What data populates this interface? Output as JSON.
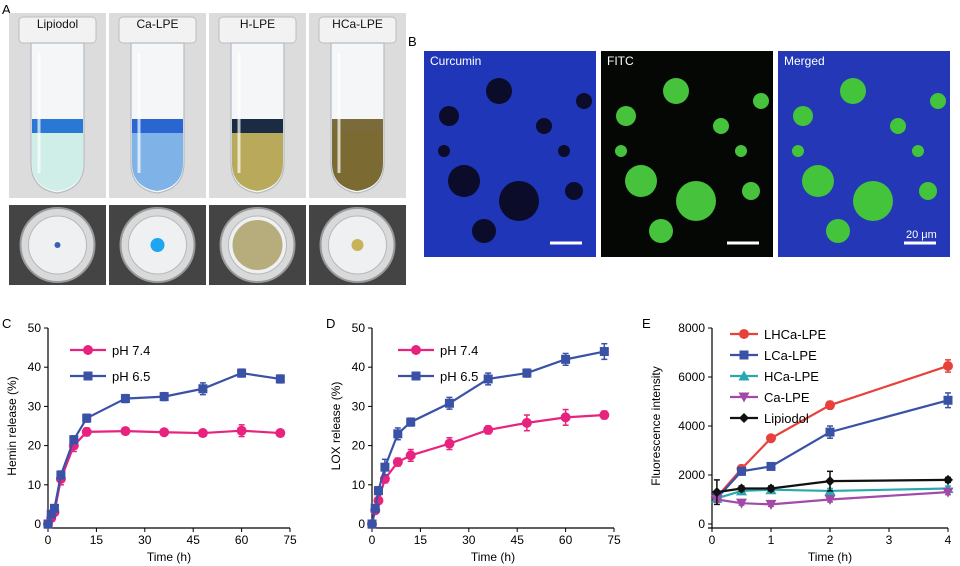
{
  "panelA": {
    "letter": "A",
    "tubes": [
      {
        "label": "Lipiodol",
        "band": "#2a78d6",
        "liquid": "#cfeee7",
        "dish": "#3a5fb0"
      },
      {
        "label": "Ca-LPE",
        "band": "#2a66d2",
        "liquid": "#7fb2e6",
        "dish": "#1ea6ee"
      },
      {
        "label": "H-LPE",
        "band": "#1b2b44",
        "liquid": "#b8aa5a",
        "dish": "#b7ad7c"
      },
      {
        "label": "HCa-LPE",
        "band": "#7b6a3a",
        "liquid": "#7c6a33",
        "dish": "#c7b35a"
      }
    ]
  },
  "panelB": {
    "letter": "B",
    "channels": [
      {
        "label": "Curcumin",
        "bg": "#1f36b8",
        "dot": "#0b0b2a"
      },
      {
        "label": "FITC",
        "bg": "#050705",
        "dot": "#47c23c"
      },
      {
        "label": "Merged",
        "bg": "#2437b6",
        "dot": "#43c43a"
      }
    ],
    "scale_label": "20 μm"
  },
  "chart_data": [
    {
      "letter": "C",
      "type": "line",
      "xlabel": "Time (h)",
      "ylabel": "Hemin release (%)",
      "xlim": [
        0,
        75
      ],
      "ylim": [
        0,
        50
      ],
      "xticks": [
        "0",
        "15",
        "30",
        "45",
        "60",
        "75"
      ],
      "yticks": [
        "0",
        "10",
        "20",
        "30",
        "40",
        "50"
      ],
      "legend": "top-left",
      "series": [
        {
          "name": "pH 7.4",
          "color": "#e8237f",
          "marker": "circle",
          "x": [
            0,
            1,
            2,
            4,
            8,
            12,
            24,
            36,
            48,
            60,
            72
          ],
          "y": [
            0,
            1.5,
            3,
            11.5,
            20,
            23.5,
            23.7,
            23.4,
            23.2,
            23.8,
            23.2
          ],
          "err": [
            0,
            0.5,
            0.8,
            1.5,
            1.5,
            1,
            0.5,
            0.5,
            0.5,
            1.5,
            0.5
          ]
        },
        {
          "name": "pH 6.5",
          "color": "#3a52a6",
          "marker": "square",
          "x": [
            0,
            1,
            2,
            4,
            8,
            12,
            24,
            36,
            48,
            60,
            72
          ],
          "y": [
            0,
            2.5,
            4,
            12.5,
            21.5,
            27,
            32,
            32.5,
            34.5,
            38.5,
            37
          ],
          "err": [
            0,
            0.5,
            0.8,
            1,
            1,
            1,
            1,
            1,
            1.5,
            1,
            1
          ]
        }
      ]
    },
    {
      "letter": "D",
      "type": "line",
      "xlabel": "Time (h)",
      "ylabel": "LOX release (%)",
      "xlim": [
        0,
        75
      ],
      "ylim": [
        0,
        50
      ],
      "xticks": [
        "0",
        "15",
        "30",
        "45",
        "60",
        "75"
      ],
      "yticks": [
        "0",
        "10",
        "20",
        "30",
        "40",
        "50"
      ],
      "legend": "top-left",
      "series": [
        {
          "name": "pH 7.4",
          "color": "#e8237f",
          "marker": "circle",
          "x": [
            0,
            1,
            2,
            4,
            8,
            12,
            24,
            36,
            48,
            60,
            72
          ],
          "y": [
            0,
            3.5,
            6,
            11.5,
            15.8,
            17.5,
            20.5,
            24,
            25.8,
            27.2,
            27.8
          ],
          "err": [
            0,
            0.5,
            0.5,
            1,
            1,
            1.5,
            1.5,
            1,
            2,
            2,
            1
          ]
        },
        {
          "name": "pH 6.5",
          "color": "#3a52a6",
          "marker": "square",
          "x": [
            0,
            1,
            2,
            4,
            8,
            12,
            24,
            36,
            48,
            60,
            72
          ],
          "y": [
            0,
            4,
            8.5,
            14.5,
            23,
            26,
            30.8,
            37,
            38.5,
            42,
            44
          ],
          "err": [
            0,
            0.5,
            1,
            2,
            1.5,
            1,
            1.5,
            1.5,
            1,
            1.5,
            2
          ]
        }
      ]
    },
    {
      "letter": "E",
      "type": "line",
      "xlabel": "Time (h)",
      "ylabel": "Fluorescence intensity",
      "xlim": [
        0,
        4
      ],
      "ylim": [
        0,
        8000
      ],
      "xticks": [
        "0",
        "1",
        "2",
        "3",
        "4"
      ],
      "yticks": [
        "0",
        "2000",
        "4000",
        "6000",
        "8000"
      ],
      "legend": "top-left",
      "series": [
        {
          "name": "LHCa-LPE",
          "color": "#e8413c",
          "marker": "circle",
          "x": [
            0.083,
            0.5,
            1,
            2,
            4
          ],
          "y": [
            1100,
            2250,
            3500,
            4850,
            6450
          ],
          "err": [
            200,
            150,
            80,
            150,
            250
          ]
        },
        {
          "name": "LCa-LPE",
          "color": "#3a52a6",
          "marker": "square",
          "x": [
            0.083,
            0.5,
            1,
            2,
            4
          ],
          "y": [
            1050,
            2150,
            2350,
            3750,
            5050
          ],
          "err": [
            150,
            150,
            100,
            250,
            300
          ]
        },
        {
          "name": "HCa-LPE",
          "color": "#2aa8b0",
          "marker": "triangle",
          "x": [
            0.083,
            0.5,
            1,
            2,
            4
          ],
          "y": [
            1050,
            1350,
            1400,
            1350,
            1450
          ],
          "err": [
            100,
            80,
            80,
            100,
            100
          ]
        },
        {
          "name": "Ca-LPE",
          "color": "#a24aa8",
          "marker": "triangle-down",
          "x": [
            0.083,
            0.5,
            1,
            2,
            4
          ],
          "y": [
            1000,
            850,
            800,
            1000,
            1300
          ],
          "err": [
            100,
            80,
            80,
            100,
            100
          ]
        },
        {
          "name": "Lipiodol",
          "color": "#111111",
          "marker": "diamond",
          "x": [
            0.083,
            0.5,
            1,
            2,
            4
          ],
          "y": [
            1300,
            1450,
            1450,
            1750,
            1800
          ],
          "err": [
            500,
            100,
            100,
            400,
            100
          ]
        }
      ]
    }
  ]
}
